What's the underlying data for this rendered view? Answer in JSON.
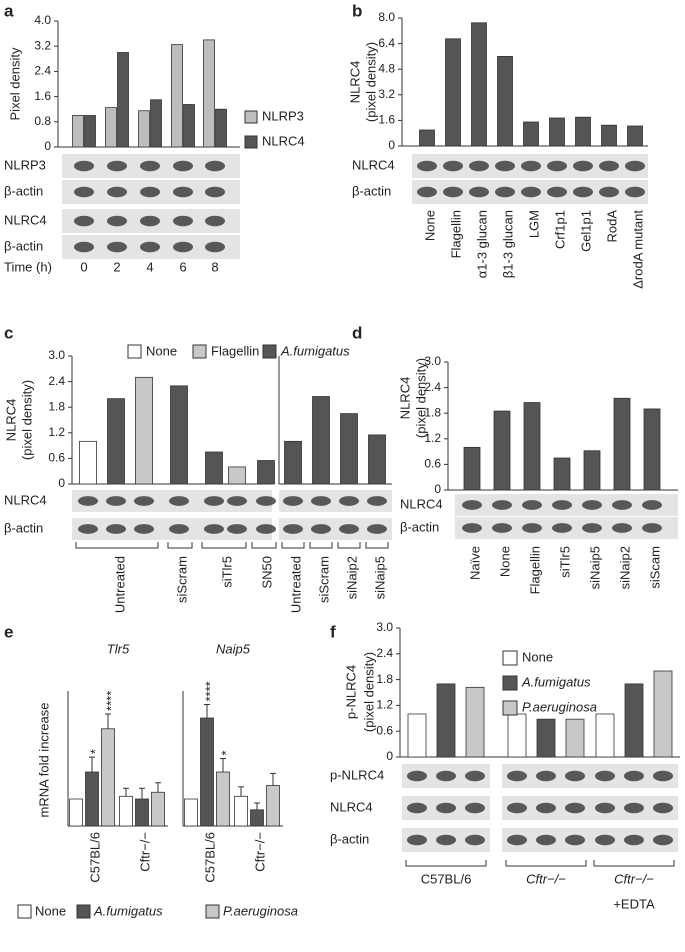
{
  "chart_data": [
    {
      "panel": "a",
      "type": "bar",
      "ylabel": "Pixel density",
      "ylim": [
        0,
        4
      ],
      "yticks": [
        0,
        0.8,
        1.6,
        2.4,
        3.2,
        {
          "value": 4,
          "label": "4.0"
        }
      ],
      "xlabel": "Time (h)",
      "categories": [
        "0",
        "2",
        "4",
        "6",
        "8"
      ],
      "series": [
        {
          "name": "NLRP3",
          "color": "#bdbdbd",
          "values": [
            1.0,
            1.25,
            1.15,
            3.25,
            3.4
          ]
        },
        {
          "name": "NLRC4",
          "color": "#555555",
          "values": [
            1.0,
            3.0,
            1.5,
            1.35,
            1.2
          ]
        }
      ],
      "blot_labels": [
        "NLRP3",
        "β-actin",
        "NLRC4",
        "β-actin"
      ]
    },
    {
      "panel": "b",
      "type": "bar",
      "ylabel": [
        "NLRC4",
        "(pixel density)"
      ],
      "ylim": [
        0,
        8
      ],
      "yticks": [
        0,
        1.6,
        3.2,
        4.8,
        6.4,
        {
          "value": 8,
          "label": "8.0"
        }
      ],
      "categories": [
        "None",
        "Flagellin",
        "α1-3 glucan",
        "β1-3 glucan",
        "LGM",
        "Crf1p1",
        "Gel1p1",
        "RodA",
        "ΔrodA mutant"
      ],
      "values": [
        1.0,
        6.7,
        7.7,
        5.6,
        1.5,
        1.75,
        1.8,
        1.3,
        1.25
      ],
      "color": "#555555",
      "blot_labels": [
        "NLRC4",
        "β-actin"
      ]
    },
    {
      "panel": "c",
      "type": "bar",
      "ylabel": [
        "NLRC4",
        "(pixel density)"
      ],
      "ylim": [
        0,
        3
      ],
      "yticks": [
        0,
        0.6,
        1.2,
        1.8,
        2.4,
        {
          "value": 3,
          "label": "3.0"
        }
      ],
      "categories": [
        null,
        null,
        null,
        null,
        null,
        null,
        null,
        null,
        null,
        null,
        null
      ],
      "series": [
        {
          "name": "None",
          "color": "#ffffff",
          "values": [
            1.0,
            null,
            null,
            null,
            null,
            null,
            null,
            null,
            null,
            null,
            null
          ]
        },
        {
          "name": "Flagellin",
          "color": "#c8c8c8",
          "values": [
            null,
            null,
            2.5,
            null,
            null,
            0.4,
            null,
            null,
            null,
            null,
            null
          ]
        },
        {
          "name": "A.fumigatus",
          "color": "#555555",
          "values": [
            null,
            2.0,
            null,
            2.3,
            0.75,
            null,
            0.55,
            1.0,
            2.05,
            1.65,
            1.15
          ]
        }
      ],
      "lane_groups": [
        "Untreated",
        "siScram",
        "siTlr5",
        "SN50",
        "Untreated",
        "siScram",
        "siNaip2",
        "siNaip5"
      ],
      "blot_labels": [
        "NLRC4",
        "β-actin"
      ]
    },
    {
      "panel": "d",
      "type": "bar",
      "ylabel": [
        "NLRC4",
        "(pixel density)"
      ],
      "ylim": [
        0,
        3
      ],
      "yticks": [
        0,
        0.6,
        1.2,
        1.8,
        2.4,
        {
          "value": 3,
          "label": "3.0"
        }
      ],
      "categories": [
        "Naïve",
        "None",
        "Flagellin",
        "siTlr5",
        "siNaip5",
        "siNaip2",
        "siScam"
      ],
      "values": [
        1.0,
        1.85,
        2.05,
        0.75,
        0.92,
        2.15,
        1.9
      ],
      "color": "#555555",
      "blot_labels": [
        "NLRC4",
        "β-actin"
      ]
    },
    {
      "panel": "e",
      "type": "bar",
      "ylabel": "mRNA fold increase",
      "ylim": [
        0,
        5
      ],
      "legend": [
        {
          "name": "None",
          "color": "#ffffff"
        },
        {
          "name": "A.fumigatus",
          "color": "#555555"
        },
        {
          "name": "P.aeruginosa",
          "color": "#c8c8c8"
        }
      ],
      "subplots": [
        {
          "title": "Tlr5",
          "categories": [
            "C57BL/6",
            "Cftr−/−"
          ],
          "series": [
            {
              "values": [
                1.0,
                1.1
              ],
              "errors": [
                null,
                0.3
              ],
              "stars": [
                null,
                null
              ]
            },
            {
              "values": [
                2.0,
                1.0
              ],
              "errors": [
                0.55,
                0.4
              ],
              "stars": [
                "*",
                null
              ]
            },
            {
              "values": [
                3.6,
                1.25
              ],
              "errors": [
                0.55,
                0.35
              ],
              "stars": [
                "****",
                null
              ]
            }
          ]
        },
        {
          "title": "Naip5",
          "categories": [
            "C57BL/6",
            "Cftr−/−"
          ],
          "series": [
            {
              "values": [
                1.0,
                1.1
              ],
              "errors": [
                null,
                0.35
              ],
              "stars": [
                null,
                null
              ]
            },
            {
              "values": [
                4.0,
                0.6
              ],
              "errors": [
                0.5,
                0.25
              ],
              "stars": [
                "****",
                null
              ]
            },
            {
              "values": [
                2.0,
                1.5
              ],
              "errors": [
                0.5,
                0.45
              ],
              "stars": [
                "*",
                null
              ]
            }
          ]
        }
      ]
    },
    {
      "panel": "f",
      "type": "bar",
      "ylabel": [
        "p-NLRC4",
        "(pixel density)"
      ],
      "ylim": [
        0,
        3
      ],
      "yticks": [
        0,
        0.6,
        1.2,
        1.8,
        2.4,
        {
          "value": 3,
          "label": "3.0"
        }
      ],
      "categories": [
        "C57BL/6",
        "Cftr−/−",
        "Cftr−/−"
      ],
      "category_notes": [
        null,
        null,
        "+EDTA"
      ],
      "series": [
        {
          "name": "None",
          "color": "#ffffff",
          "values": [
            1.0,
            1.0,
            1.0
          ]
        },
        {
          "name": "A.fumigatus",
          "color": "#555555",
          "values": [
            1.7,
            0.88,
            1.7
          ]
        },
        {
          "name": "P.aeruginosa",
          "color": "#c8c8c8",
          "values": [
            1.62,
            0.88,
            2.0
          ]
        }
      ],
      "blot_labels": [
        "p-NLRC4",
        "NLRC4",
        "β-actin"
      ]
    }
  ]
}
